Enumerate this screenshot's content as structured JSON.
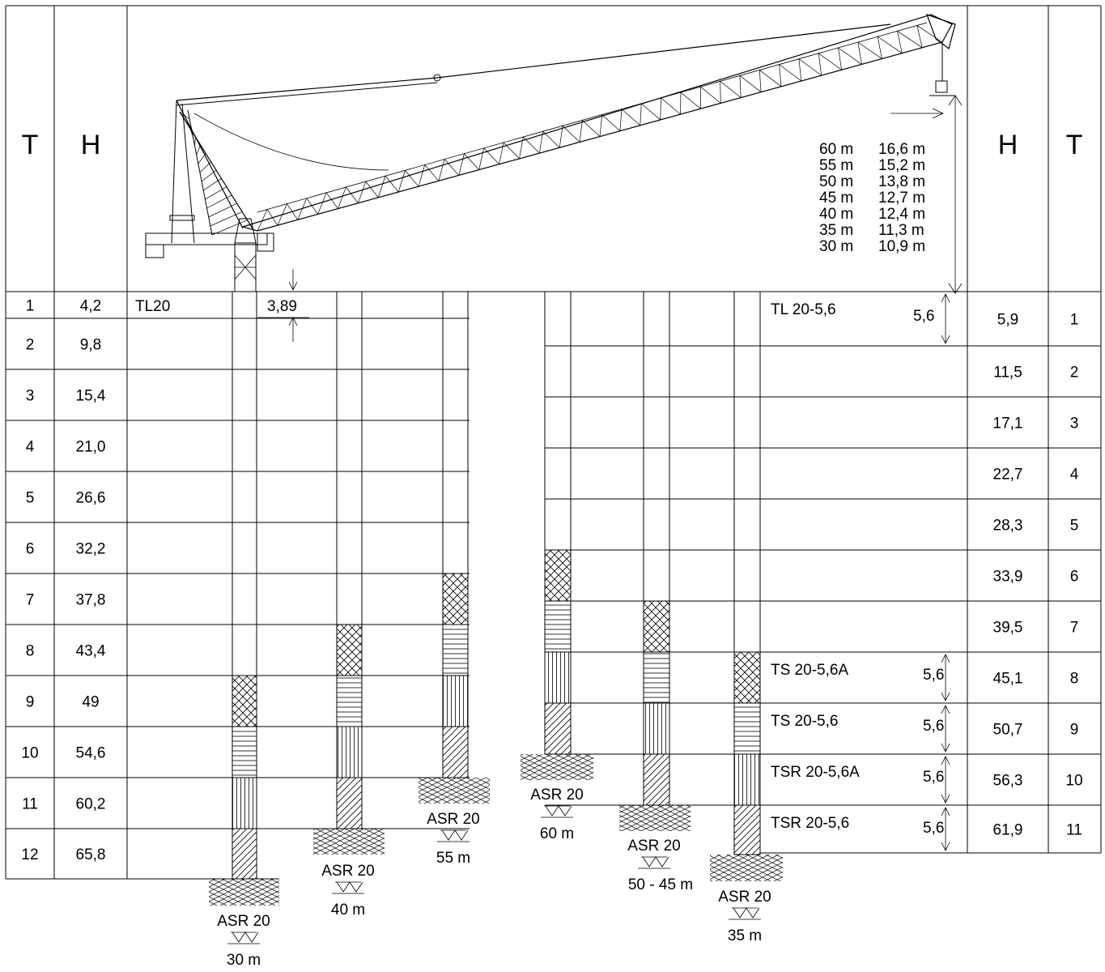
{
  "headers": {
    "t_left": "T",
    "h_left": "H",
    "h_right": "H",
    "t_right": "T"
  },
  "left_rows": [
    {
      "t": "1",
      "h": "4,2"
    },
    {
      "t": "2",
      "h": "9,8"
    },
    {
      "t": "3",
      "h": "15,4"
    },
    {
      "t": "4",
      "h": "21,0"
    },
    {
      "t": "5",
      "h": "26,6"
    },
    {
      "t": "6",
      "h": "32,2"
    },
    {
      "t": "7",
      "h": "37,8"
    },
    {
      "t": "8",
      "h": "43,4"
    },
    {
      "t": "9",
      "h": "49"
    },
    {
      "t": "10",
      "h": "54,6"
    },
    {
      "t": "11",
      "h": "60,2"
    },
    {
      "t": "12",
      "h": "65,8"
    }
  ],
  "right_rows": [
    {
      "h": "5,9",
      "t": "1"
    },
    {
      "h": "11,5",
      "t": "2"
    },
    {
      "h": "17,1",
      "t": "3"
    },
    {
      "h": "22,7",
      "t": "4"
    },
    {
      "h": "28,3",
      "t": "5"
    },
    {
      "h": "33,9",
      "t": "6"
    },
    {
      "h": "39,5",
      "t": "7"
    },
    {
      "h": "45,1",
      "t": "8"
    },
    {
      "h": "50,7",
      "t": "9"
    },
    {
      "h": "56,3",
      "t": "10"
    },
    {
      "h": "61,9",
      "t": "11"
    }
  ],
  "tl20_label": "TL20",
  "top_dim": "3,89",
  "jib_table": [
    {
      "jib": "60 m",
      "height": "16,6 m"
    },
    {
      "jib": "55 m",
      "height": "15,2 m"
    },
    {
      "jib": "50 m",
      "height": "13,8 m"
    },
    {
      "jib": "45 m",
      "height": "12,7 m"
    },
    {
      "jib": "40 m",
      "height": "12,4 m"
    },
    {
      "jib": "35 m",
      "height": "11,3 m"
    },
    {
      "jib": "30 m",
      "height": "10,9 m"
    }
  ],
  "sections": [
    {
      "label": "TL 20-5,6",
      "dim": "5,6"
    },
    {
      "label": "TS 20-5,6A",
      "dim": "5,6"
    },
    {
      "label": "TS 20-5,6",
      "dim": "5,6"
    },
    {
      "label": "TSR 20-5,6A",
      "dim": "5,6"
    },
    {
      "label": "TSR 20-5,6",
      "dim": "5,6"
    }
  ],
  "bases": [
    {
      "name": "ASR 20",
      "jib": "30 m"
    },
    {
      "name": "ASR 20",
      "jib": "40 m"
    },
    {
      "name": "ASR 20",
      "jib": "55 m"
    },
    {
      "name": "ASR 20",
      "jib": "60 m"
    },
    {
      "name": "ASR 20",
      "jib": "50 - 45 m"
    },
    {
      "name": "ASR 20",
      "jib": "35 m"
    }
  ]
}
